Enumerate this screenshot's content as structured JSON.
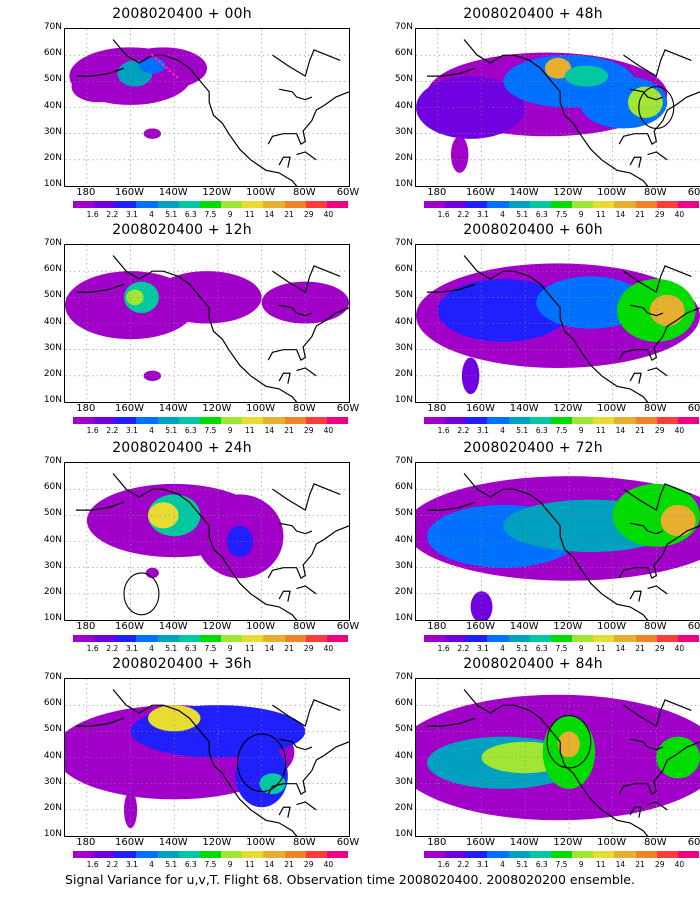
{
  "panels": [
    {
      "title": "2008020400 + 00h"
    },
    {
      "title": "2008020400 + 48h"
    },
    {
      "title": "2008020400 + 12h"
    },
    {
      "title": "2008020400 + 60h"
    },
    {
      "title": "2008020400 + 24h"
    },
    {
      "title": "2008020400 + 72h"
    },
    {
      "title": "2008020400 + 36h"
    },
    {
      "title": "2008020400 + 84h"
    }
  ],
  "lat_labels": [
    "70N",
    "60N",
    "50N",
    "40N",
    "30N",
    "20N",
    "10N"
  ],
  "lon_labels": [
    "180",
    "160W",
    "140W",
    "120W",
    "100W",
    "80W",
    "60W"
  ],
  "colorbar": {
    "labels": [
      "1.6",
      "2.2",
      "3.1",
      "4",
      "5.1",
      "6.3",
      "7.5",
      "9",
      "11",
      "14",
      "21",
      "29",
      "40"
    ],
    "colors": [
      "#a000c8",
      "#7000e0",
      "#2020ff",
      "#0070ff",
      "#00a0c0",
      "#00c8a0",
      "#00dc00",
      "#a0e632",
      "#e6dc32",
      "#e6af2d",
      "#f08228",
      "#fa3c3c",
      "#f00082"
    ]
  },
  "caption": "Signal Variance for u,v,T. Flight 68. Observation time 2008020400. 2008020200 ensemble."
}
